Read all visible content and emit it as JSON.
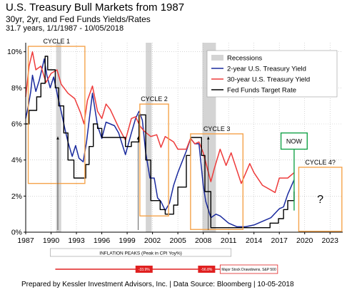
{
  "header": {
    "title": "U.S. Treasury Bull Markets from 1987",
    "subtitle": "30yr, 2yr, and Fed Funds Yields/Rates",
    "subtitle2": "31.7 years, 1/1/1987 - 10/05/2018"
  },
  "footer": {
    "source": "Prepared by Kessler Investment Advisors, Inc. | Data Source: Bloomberg | 10-05-2018"
  },
  "colors": {
    "two_year": "#1a2a9e",
    "thirty_year": "#ee3b3b",
    "fed_funds": "#000000",
    "recession": "#d4d4d4",
    "cycle_box": "#f5a34b",
    "now_box": "#16a34a",
    "drawdown": "#e02020"
  },
  "chart_data": {
    "type": "line",
    "title": "U.S. Treasury Bull Markets from 1987",
    "xlim": [
      1987,
      2024.5
    ],
    "ylim": [
      0,
      10.5
    ],
    "x_ticks": [
      "1987",
      "1990",
      "1993",
      "1996",
      "1999",
      "2002",
      "2005",
      "2008",
      "2011",
      "2014",
      "2017",
      "2020",
      "2023"
    ],
    "y_ticks": [
      "0%",
      "2%",
      "4%",
      "6%",
      "8%",
      "10%"
    ],
    "legend": {
      "placement": "top-right",
      "entries": [
        "Recessions",
        "2-year U.S. Treasury Yield",
        "30-year U.S. Treasury Yield",
        "Fed Funds Target Rate"
      ]
    },
    "recessions": [
      [
        1990.6,
        1991.2
      ],
      [
        2001.2,
        2001.9
      ],
      [
        2007.9,
        2009.5
      ]
    ],
    "series": [
      {
        "name": "2-year U.S. Treasury Yield",
        "color": "#1a2a9e",
        "x": [
          1987,
          1987.3,
          1987.6,
          1987.8,
          1988.2,
          1988.6,
          1989.2,
          1989.5,
          1989.9,
          1990.3,
          1990.8,
          1991.2,
          1991.6,
          1992,
          1992.5,
          1992.9,
          1993.3,
          1993.8,
          1994.2,
          1994.9,
          1995.5,
          1996,
          1996.5,
          1997,
          1997.5,
          1998,
          1998.8,
          1999.5,
          2000,
          2000.4,
          2000.8,
          2001.2,
          2001.7,
          2002.2,
          2002.6,
          2003,
          2003.5,
          2004,
          2004.5,
          2005,
          2005.5,
          2006,
          2006.5,
          2007,
          2007.5,
          2008,
          2008.3,
          2008.9,
          2009.5,
          2010,
          2011,
          2012,
          2013,
          2014,
          2015,
          2016,
          2017,
          2017.5,
          2018,
          2018.75
        ],
        "y": [
          6.3,
          7.0,
          7.8,
          8.7,
          7.8,
          8.4,
          9.6,
          8.7,
          8.0,
          8.6,
          7.5,
          6.7,
          5.8,
          5.0,
          4.2,
          4.8,
          4.1,
          3.9,
          5.0,
          7.7,
          5.9,
          5.2,
          6.1,
          6.0,
          5.9,
          5.5,
          4.3,
          5.5,
          6.3,
          6.7,
          6.2,
          4.4,
          3.0,
          3.0,
          1.9,
          1.7,
          1.2,
          1.6,
          2.6,
          3.3,
          3.9,
          4.5,
          5.2,
          4.9,
          4.9,
          2.6,
          1.7,
          0.8,
          1.0,
          0.9,
          0.5,
          0.3,
          0.3,
          0.4,
          0.6,
          0.8,
          1.3,
          1.4,
          2.1,
          2.9
        ]
      },
      {
        "name": "30-year U.S. Treasury Yield",
        "color": "#ee3b3b",
        "x": [
          1987,
          1987.4,
          1987.8,
          1988.2,
          1988.8,
          1989.4,
          1990,
          1990.7,
          1991.2,
          1992,
          1992.8,
          1993.5,
          1993.9,
          1994.3,
          1994.9,
          1995.5,
          1996,
          1996.5,
          1997,
          1998,
          1998.8,
          1999.5,
          2000,
          2000.5,
          2001,
          2001.8,
          2002.5,
          2003,
          2003.5,
          2004.5,
          2005,
          2006,
          2006.5,
          2007,
          2007.5,
          2008,
          2008.9,
          2009.3,
          2010,
          2010.7,
          2011.3,
          2012.5,
          2013.5,
          2014,
          2015,
          2016.5,
          2017,
          2018,
          2018.75
        ],
        "y": [
          7.5,
          9.2,
          10.0,
          9.0,
          9.2,
          8.3,
          8.8,
          9.0,
          8.2,
          7.7,
          7.4,
          6.6,
          6.0,
          7.3,
          8.1,
          6.7,
          6.3,
          7.1,
          6.8,
          5.8,
          5.1,
          6.3,
          6.4,
          5.9,
          5.6,
          5.3,
          5.4,
          4.7,
          5.3,
          5.0,
          4.6,
          4.6,
          5.2,
          4.9,
          5.0,
          4.4,
          2.8,
          3.5,
          4.6,
          3.7,
          4.4,
          2.7,
          3.8,
          3.3,
          2.6,
          2.2,
          3.0,
          3.0,
          3.3
        ]
      },
      {
        "name": "Fed Funds Target Rate",
        "color": "#000000",
        "step": true,
        "x": [
          1987,
          1987.4,
          1988.3,
          1988.8,
          1989.3,
          1989.6,
          1990.5,
          1990.9,
          1991.5,
          1992,
          1992.7,
          1994.1,
          1994.5,
          1995,
          1995.5,
          1996,
          1998.8,
          1999.5,
          2000.4,
          2001.2,
          2001.8,
          2002.9,
          2003.5,
          2004.5,
          2005,
          2006,
          2006.5,
          2007.8,
          2008.2,
          2008.9,
          2015.9,
          2016.9,
          2017.5,
          2018,
          2018.75
        ],
        "y": [
          6.0,
          6.75,
          7.5,
          8.25,
          9.75,
          9.0,
          8.0,
          7.0,
          5.5,
          4.0,
          3.0,
          3.75,
          4.75,
          6.0,
          5.75,
          5.25,
          4.75,
          5.0,
          6.5,
          4.0,
          1.75,
          1.25,
          1.0,
          1.5,
          2.5,
          4.25,
          5.25,
          4.25,
          2.25,
          0.25,
          0.5,
          0.75,
          1.25,
          1.75,
          2.25
        ]
      }
    ],
    "cycles": [
      {
        "label": "CYCLE 1",
        "x0": 1987.3,
        "x1": 1994.0,
        "y0": 2.7,
        "y1": 10.3
      },
      {
        "label": "CYCLE 2",
        "x0": 2000.5,
        "x1": 2003.9,
        "y0": 0.9,
        "y1": 7.1
      },
      {
        "label": "CYCLE 3",
        "x0": 2006.5,
        "x1": 2012.7,
        "y0": 0.15,
        "y1": 5.45
      },
      {
        "label": "CYCLE 4?",
        "x0": 2019.3,
        "x1": 2024.4,
        "y0": 0.05,
        "y1": 3.6
      }
    ],
    "now": {
      "label": "NOW",
      "x": 2018.75,
      "box_x0": 2017.2,
      "box_x1": 2020.3,
      "box_y0": 4.6,
      "box_y1": 5.5
    },
    "question": "?",
    "inflation_peaks": {
      "label": "INFLATION PEAKS (Peak in CPI Yoy%)",
      "years": [
        1990.8,
        2000.3,
        2008.6
      ]
    },
    "drawdowns": {
      "values": [
        "-33.9%",
        "-56.8%"
      ],
      "legend": "Major Stock Drawdowns, S&P 500"
    }
  }
}
